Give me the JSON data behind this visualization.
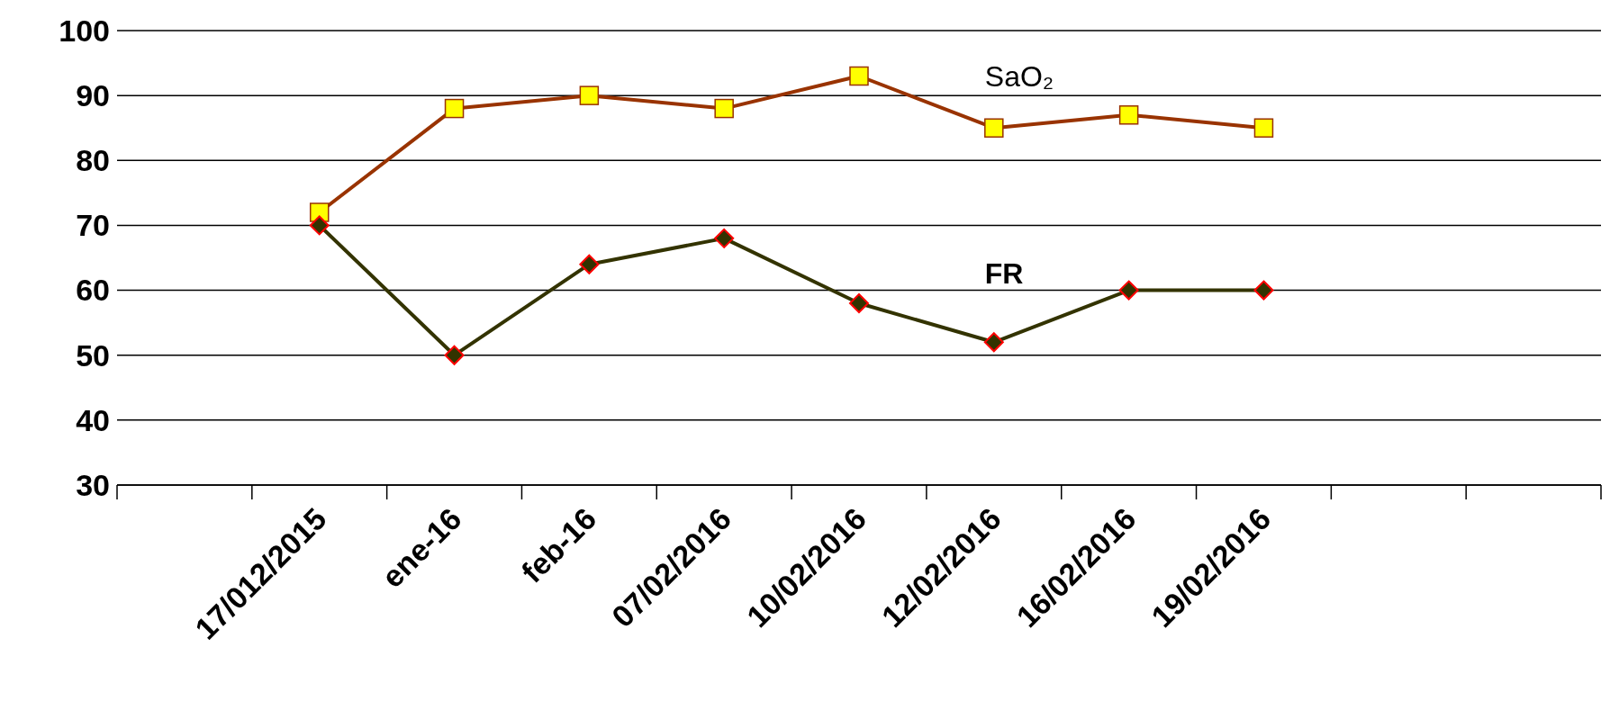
{
  "chart_data": {
    "type": "line",
    "categories": [
      null,
      "17/012/2015",
      "ene-16",
      "feb-16",
      "07/02/2016",
      "10/02/2016",
      "12/02/2016",
      "16/02/2016",
      "19/02/2016",
      null,
      null
    ],
    "series": [
      {
        "name": "SaO₂",
        "color": "#993300",
        "marker": "square",
        "values": [
          null,
          72,
          88,
          90,
          88,
          93,
          85,
          87,
          85,
          null,
          null
        ]
      },
      {
        "name": "FR",
        "color": "#333300",
        "marker": "diamond",
        "values": [
          null,
          70,
          50,
          64,
          68,
          58,
          52,
          60,
          60,
          null,
          null
        ]
      }
    ],
    "ylim": [
      30,
      100
    ],
    "yticks": [
      30,
      40,
      50,
      60,
      70,
      80,
      90,
      100
    ],
    "grid": "y"
  }
}
